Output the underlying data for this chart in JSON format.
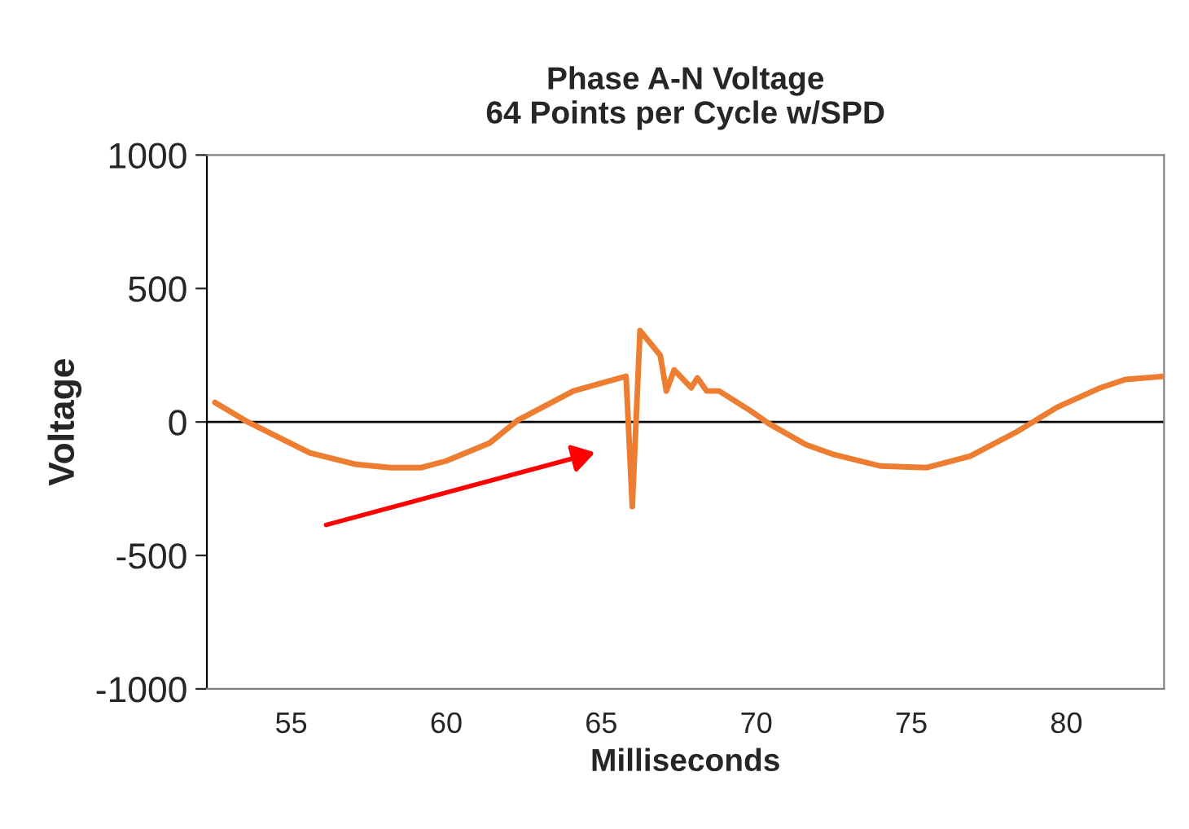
{
  "chart_data": {
    "type": "line",
    "title": "Phase A-N Voltage\n64 Points per Cycle w/SPD",
    "xlabel": "Milliseconds",
    "ylabel": "Voltage",
    "x": [
      52.54,
      53.6,
      55.6,
      57.1,
      58.2,
      59.2,
      60.0,
      61.4,
      62.3,
      64.1,
      65.8,
      66.0,
      66.25,
      66.9,
      67.1,
      67.35,
      67.9,
      68.1,
      68.4,
      68.8,
      69.8,
      70.4,
      71.6,
      72.5,
      74.0,
      75.5,
      76.9,
      78.4,
      79.7,
      81.1,
      81.9,
      83.15
    ],
    "series": [
      {
        "color": "#ed7d31",
        "values": [
          73,
          0,
          -116,
          -159,
          -171,
          -171,
          -146,
          -79,
          6,
          116,
          171,
          -317,
          342,
          250,
          116,
          195,
          128,
          165,
          116,
          116,
          43,
          -6,
          -85,
          -122,
          -165,
          -171,
          -128,
          -37,
          55,
          128,
          159,
          171
        ]
      }
    ],
    "xlim": [
      52.28,
      83.15
    ],
    "xticks": [
      55,
      60,
      65,
      70,
      75,
      80
    ],
    "ylim": [
      -1000,
      1000
    ],
    "yticks": [
      -1000,
      -500,
      0,
      500,
      1000
    ],
    "ref_lines": [
      {
        "axis": "y",
        "value": 0,
        "color": "#000000"
      }
    ],
    "grid": false,
    "legend": false,
    "marker": "none",
    "line_style": "solid"
  }
}
